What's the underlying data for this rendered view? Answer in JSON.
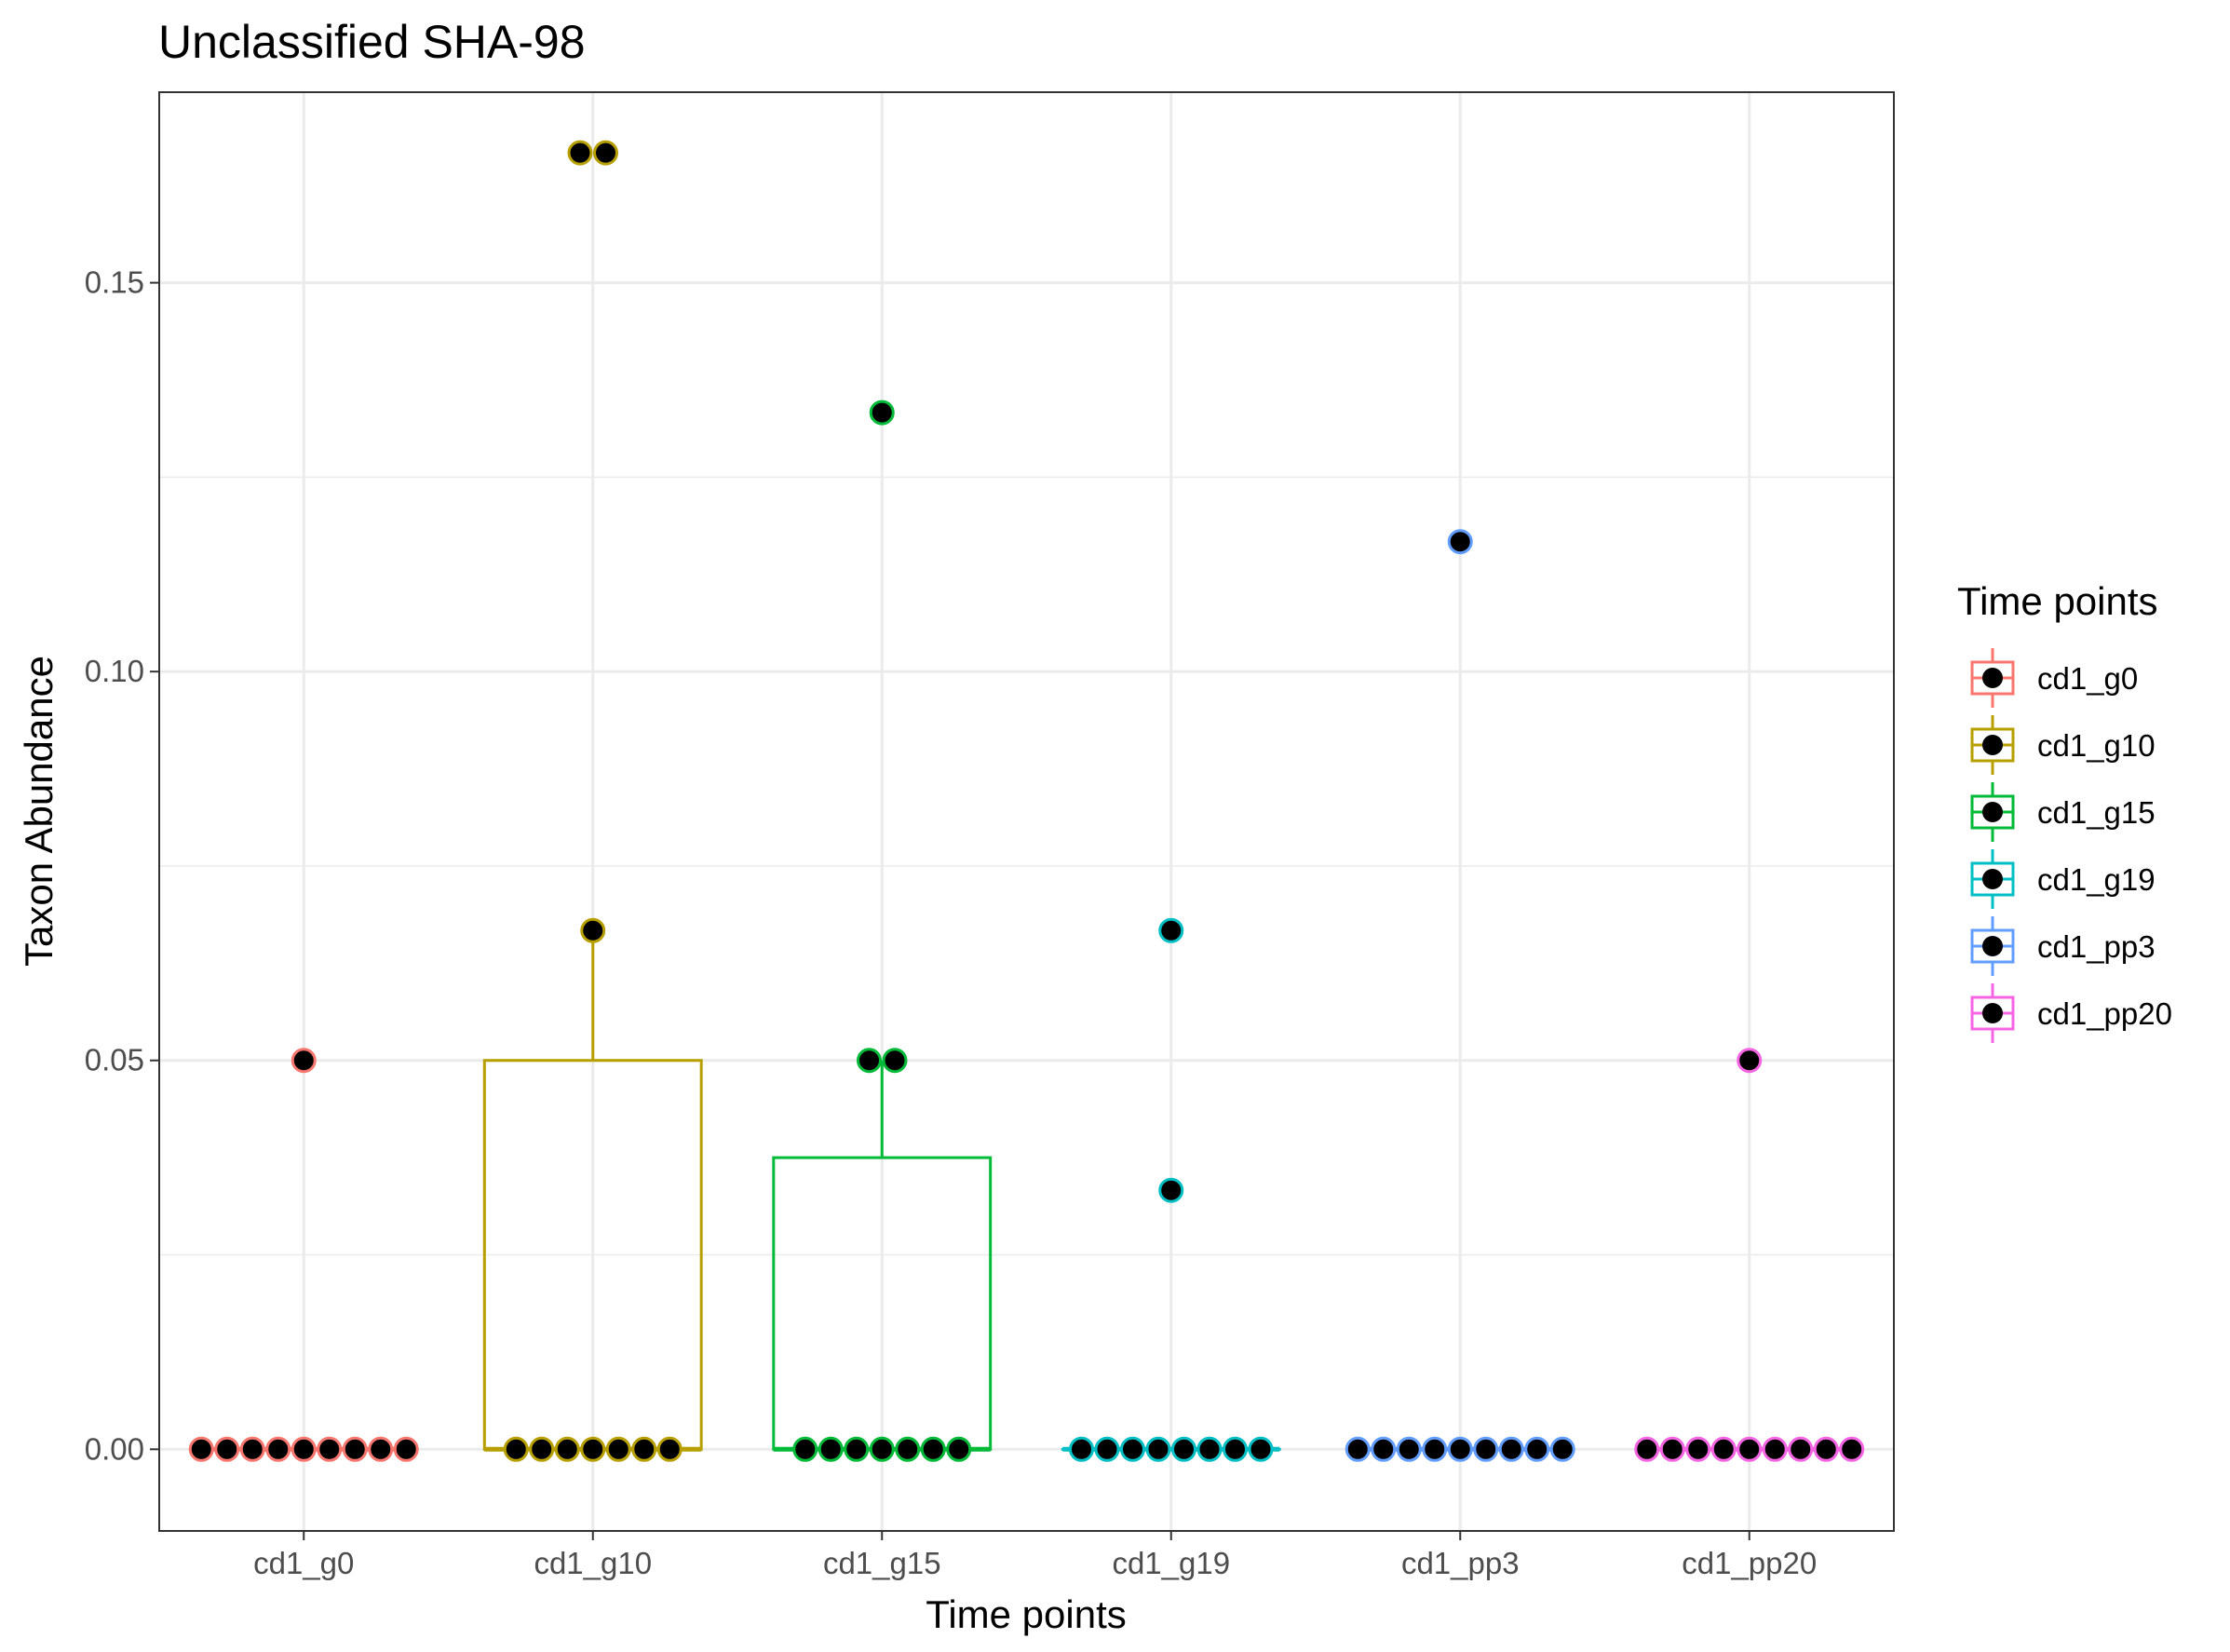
{
  "chart_data": {
    "type": "boxplot",
    "title": "Unclassified SHA-98",
    "xlabel": "Time points",
    "ylabel": "Taxon Abundance",
    "ylim": [
      -0.0105,
      0.1745
    ],
    "y_ticks": [
      0.0,
      0.05,
      0.1,
      0.15
    ],
    "y_tick_labels": [
      "0.00",
      "0.05",
      "0.10",
      "0.15"
    ],
    "y_minor_ticks": [
      0.025,
      0.075,
      0.125,
      0.175
    ],
    "grid": true,
    "legend": {
      "title": "Time points",
      "position": "right"
    },
    "categories": [
      "cd1_g0",
      "cd1_g10",
      "cd1_g15",
      "cd1_g19",
      "cd1_pp3",
      "cd1_pp20"
    ],
    "colors": [
      "#F8766D",
      "#B79F00",
      "#00BA38",
      "#00BFC4",
      "#619CFF",
      "#F564E3"
    ],
    "point_fill": "#000000",
    "boxes": [
      {
        "q1": 0,
        "median": 0,
        "q3": 0,
        "whisker_low": 0,
        "whisker_high": 0
      },
      {
        "q1": 0,
        "median": 0,
        "q3": 0.05,
        "whisker_low": 0,
        "whisker_high": 0.0667
      },
      {
        "q1": 0,
        "median": 0,
        "q3": 0.0375,
        "whisker_low": 0,
        "whisker_high": 0.05
      },
      {
        "q1": 0,
        "median": 0,
        "q3": 0,
        "whisker_low": 0,
        "whisker_high": 0
      },
      {
        "q1": 0,
        "median": 0,
        "q3": 0,
        "whisker_low": 0,
        "whisker_high": 0
      },
      {
        "q1": 0,
        "median": 0,
        "q3": 0,
        "whisker_low": 0,
        "whisker_high": 0
      }
    ],
    "series": [
      {
        "name": "cd1_g0",
        "values": [
          0,
          0,
          0,
          0,
          0,
          0,
          0,
          0,
          0,
          0.05
        ]
      },
      {
        "name": "cd1_g10",
        "values": [
          0,
          0,
          0,
          0,
          0,
          0,
          0,
          0.0667,
          0.1667,
          0.1667
        ]
      },
      {
        "name": "cd1_g15",
        "values": [
          0,
          0,
          0,
          0,
          0,
          0,
          0,
          0.05,
          0.05,
          0.1333
        ]
      },
      {
        "name": "cd1_g19",
        "values": [
          0,
          0,
          0,
          0,
          0,
          0,
          0,
          0,
          0.0333,
          0.0667
        ]
      },
      {
        "name": "cd1_pp3",
        "values": [
          0,
          0,
          0,
          0,
          0,
          0,
          0,
          0,
          0,
          0.1167
        ]
      },
      {
        "name": "cd1_pp20",
        "values": [
          0,
          0,
          0,
          0,
          0,
          0,
          0,
          0,
          0,
          0.05
        ]
      }
    ]
  }
}
